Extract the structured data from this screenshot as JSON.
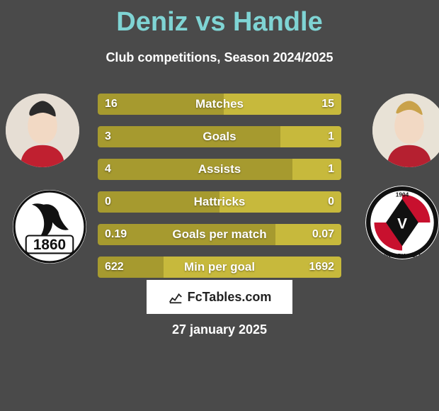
{
  "title": "Deniz vs Handle",
  "subtitle": "Club competitions, Season 2024/2025",
  "date": "27 january 2025",
  "footer_logo_text": "FcTables.com",
  "colors": {
    "title": "#7fd4d4",
    "text": "#ffffff",
    "bg": "#4a4a4a",
    "bar_left": "#a69a2f",
    "bar_right": "#c7b93c",
    "footer_bg": "#ffffff",
    "footer_text": "#222222"
  },
  "bars": [
    {
      "label": "Matches",
      "left_val": "16",
      "right_val": "15",
      "left_pct": 51.6,
      "right_pct": 48.4
    },
    {
      "label": "Goals",
      "left_val": "3",
      "right_val": "1",
      "left_pct": 75.0,
      "right_pct": 25.0
    },
    {
      "label": "Assists",
      "left_val": "4",
      "right_val": "1",
      "left_pct": 80.0,
      "right_pct": 20.0
    },
    {
      "label": "Hattricks",
      "left_val": "0",
      "right_val": "0",
      "left_pct": 50.0,
      "right_pct": 50.0
    },
    {
      "label": "Goals per match",
      "left_val": "0.19",
      "right_val": "0.07",
      "left_pct": 73.1,
      "right_pct": 26.9
    },
    {
      "label": "Min per goal",
      "left_val": "622",
      "right_val": "1692",
      "left_pct": 26.9,
      "right_pct": 73.1
    }
  ],
  "player_left": {
    "name": "Deniz"
  },
  "player_right": {
    "name": "Handle"
  },
  "club_left": {
    "name": "TSV 1860 München",
    "year": "1860"
  },
  "club_right": {
    "name": "Viktoria Köln",
    "year": "1904"
  }
}
